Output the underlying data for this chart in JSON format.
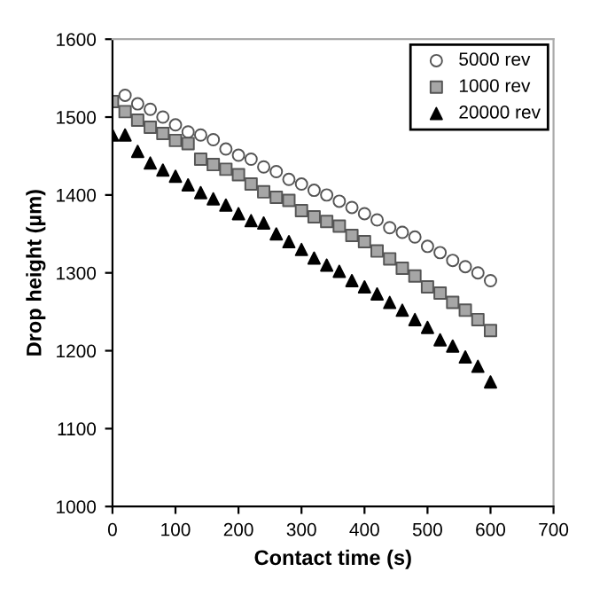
{
  "chart_data": {
    "type": "scatter",
    "xlabel": "Contact time (s)",
    "ylabel": "Drop height (µm)",
    "x": [
      0,
      20,
      40,
      60,
      80,
      100,
      120,
      140,
      160,
      180,
      200,
      220,
      240,
      260,
      280,
      300,
      320,
      340,
      360,
      380,
      400,
      420,
      440,
      460,
      480,
      500,
      520,
      540,
      560,
      580,
      600
    ],
    "xlim": [
      0,
      700
    ],
    "xticks": [
      0,
      100,
      200,
      300,
      400,
      500,
      600,
      700
    ],
    "ylim": [
      1000,
      1600
    ],
    "yticks": [
      1000,
      1100,
      1200,
      1300,
      1400,
      1500,
      1600
    ],
    "grid": false,
    "legend": "top right",
    "series": [
      {
        "name": "5000 rev",
        "color": "#ffffff",
        "marker": "circle",
        "values": [
          null,
          1528,
          1517,
          1510,
          1500,
          1490,
          1481,
          1477,
          1471,
          1459,
          1451,
          1446,
          1436,
          1430,
          1420,
          1414,
          1406,
          1400,
          1392,
          1384,
          1376,
          1368,
          1358,
          1352,
          1346,
          1334,
          1326,
          1316,
          1308,
          1300,
          1290
        ]
      },
      {
        "name": "1000 rev",
        "color": "#a6a6a6",
        "marker": "square",
        "values": [
          1520,
          1507,
          1496,
          1487,
          1479,
          1470,
          1466,
          1446,
          1439,
          1433,
          1426,
          1414,
          1404,
          1397,
          1393,
          1380,
          1372,
          1366,
          1360,
          1348,
          1340,
          1328,
          1318,
          1306,
          1296,
          1282,
          1274,
          1262,
          1252,
          1240,
          1226
        ]
      },
      {
        "name": "20000 rev",
        "color": "#000000",
        "marker": "triangle",
        "values": [
          1477,
          1477,
          1456,
          1441,
          1432,
          1424,
          1413,
          1403,
          1395,
          1387,
          1376,
          1367,
          1364,
          1350,
          1340,
          1330,
          1319,
          1310,
          1302,
          1290,
          1282,
          1273,
          1262,
          1252,
          1240,
          1230,
          1214,
          1206,
          1192,
          1180,
          1160
        ]
      }
    ]
  }
}
